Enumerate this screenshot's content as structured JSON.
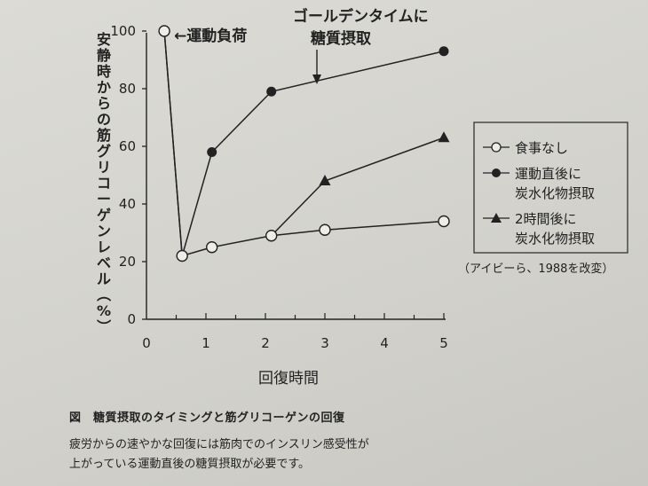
{
  "chart_data": {
    "type": "line",
    "ylabel": "安静時からの筋グリコーゲンレベル（%）",
    "xlabel": "回復時間",
    "ylim": [
      0,
      100
    ],
    "xlim": [
      0,
      5
    ],
    "yticks": [
      "0",
      "20",
      "40",
      "60",
      "80",
      "100"
    ],
    "xticks": [
      "0",
      "1",
      "2",
      "3",
      "4",
      "5"
    ],
    "grid": false,
    "legend_position": "right",
    "series": [
      {
        "name": "食事なし",
        "marker": "open-circle",
        "x": [
          0.3,
          0.6,
          1.1,
          2.1,
          3.0,
          5.0
        ],
        "y": [
          100,
          22,
          25,
          29,
          31,
          34
        ]
      },
      {
        "name": "運動直後に炭水化物摂取",
        "marker": "filled-circle",
        "x": [
          0.3,
          0.6,
          1.1,
          2.1,
          5.0
        ],
        "y": [
          100,
          22,
          58,
          79,
          93
        ]
      },
      {
        "name": "2時間後に炭水化物摂取",
        "marker": "filled-triangle",
        "x": [
          2.1,
          3.0,
          5.0
        ],
        "y": [
          29,
          48,
          63
        ]
      }
    ],
    "annotations": {
      "exercise_load": "←運動負荷",
      "golden_time_line1": "ゴールデンタイムに",
      "golden_time_line2": "糖質摂取",
      "source": "（アイビーら、1988を改変）"
    },
    "legend": {
      "item1": "食事なし",
      "item2_line1": "運動直後に",
      "item2_line2": "炭水化物摂取",
      "item3_line1": "2時間後に",
      "item3_line2": "炭水化物摂取"
    }
  },
  "caption": {
    "title": "図　糖質摂取のタイミングと筋グリコーゲンの回復",
    "desc_line1": "疲労からの速やかな回復には筋肉でのインスリン感受性が",
    "desc_line2": "上がっている運動直後の糖質摂取が必要です。"
  }
}
